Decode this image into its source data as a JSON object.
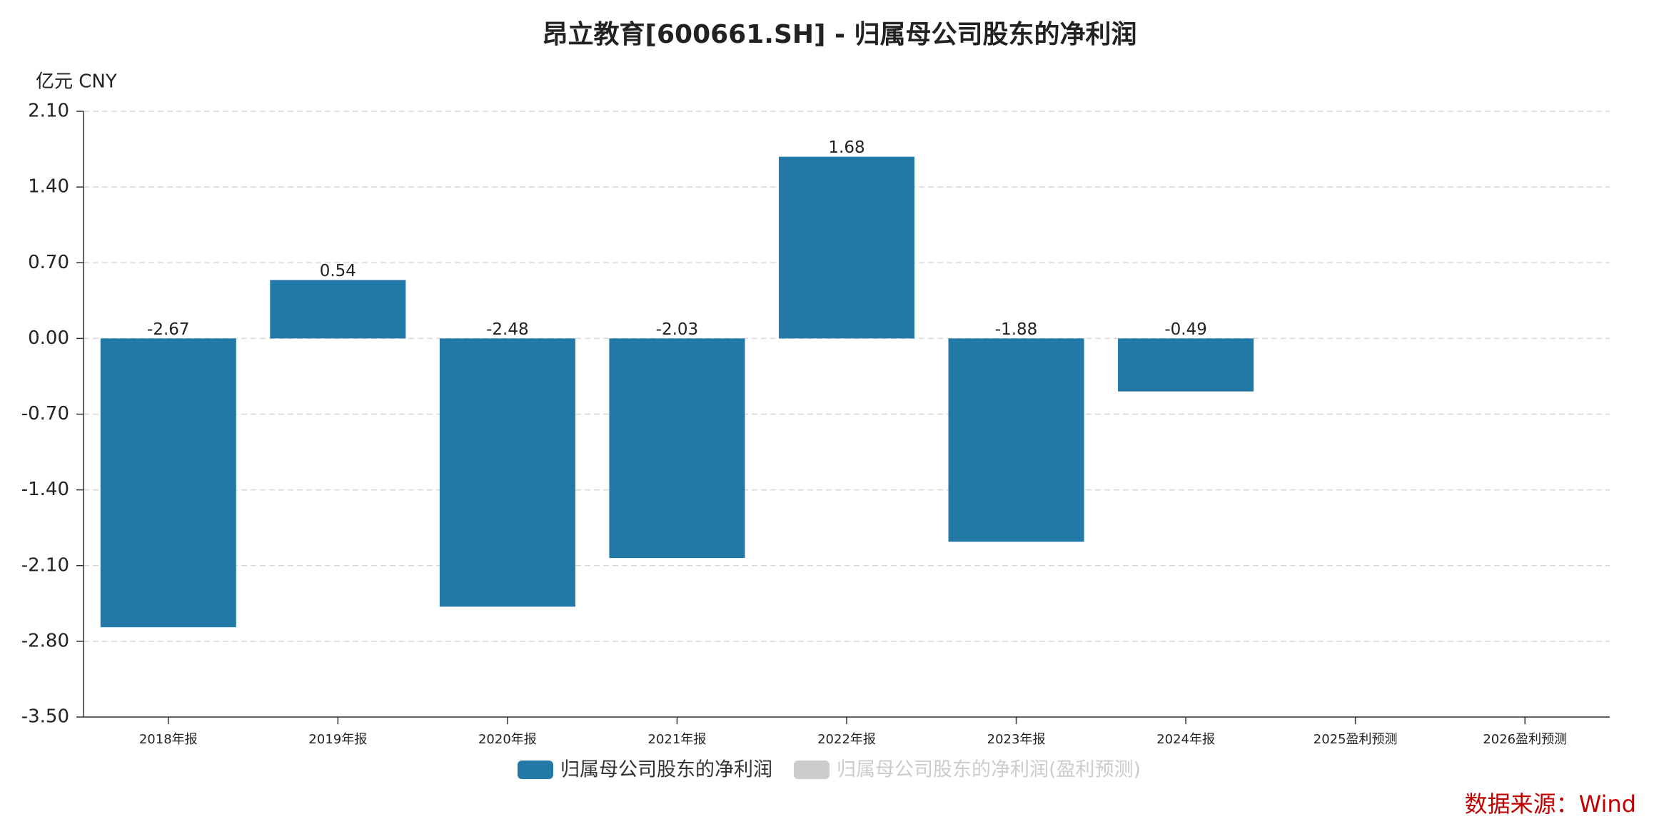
{
  "chart_data": {
    "type": "bar",
    "title": "昂立教育[600661.SH] - 归属母公司股东的净利润",
    "y_unit": "亿元  CNY",
    "source": "数据来源：Wind",
    "categories": [
      "2018年报",
      "2019年报",
      "2020年报",
      "2021年报",
      "2022年报",
      "2023年报",
      "2024年报",
      "2025盈利预测",
      "2026盈利预测"
    ],
    "series": [
      {
        "name": "归属母公司股东的净利润",
        "color": "#2278a6",
        "values": [
          -2.67,
          0.54,
          -2.48,
          -2.03,
          1.68,
          -1.88,
          -0.49,
          null,
          null
        ]
      },
      {
        "name": "归属母公司股东的净利润(盈利预测)",
        "color": "#cccccc",
        "values": [
          null,
          null,
          null,
          null,
          null,
          null,
          null,
          null,
          null
        ]
      }
    ],
    "ylim": [
      -3.5,
      2.1
    ],
    "yticks": [
      {
        "value": -3.5,
        "label": "-3.50"
      },
      {
        "value": -2.8,
        "label": "-2.80"
      },
      {
        "value": -2.1,
        "label": "-2.10"
      },
      {
        "value": -1.4,
        "label": "-1.40"
      },
      {
        "value": -0.7,
        "label": "-0.70"
      },
      {
        "value": 0,
        "label": "0.00"
      },
      {
        "value": 0.7,
        "label": "0.70"
      },
      {
        "value": 1.4,
        "label": "1.40"
      },
      {
        "value": 2.1,
        "label": "2.10"
      }
    ],
    "grid": true
  }
}
